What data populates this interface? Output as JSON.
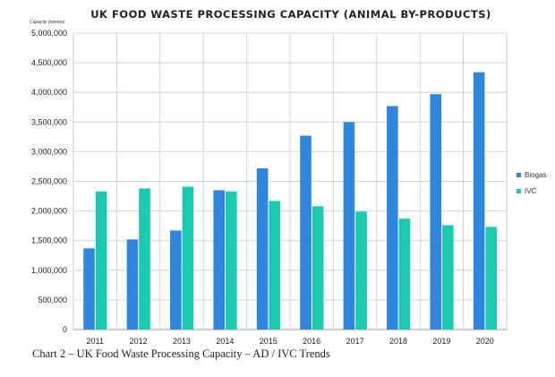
{
  "chart_data": {
    "type": "bar",
    "title": "UK FOOD WASTE PROCESSING CAPACITY (ANIMAL BY-PRODUCTS)",
    "ylabel": "Capacity (tonnes)",
    "xlabel": "",
    "categories": [
      "2011",
      "2012",
      "2013",
      "2014",
      "2015",
      "2016",
      "2017",
      "2018",
      "2019",
      "2020"
    ],
    "series": [
      {
        "name": "Biogas",
        "color": "#2e86de",
        "values": [
          1370000,
          1520000,
          1670000,
          2350000,
          2720000,
          3270000,
          3500000,
          3770000,
          3970000,
          4340000
        ]
      },
      {
        "name": "IVC",
        "color": "#1ac9b0",
        "values": [
          2330000,
          2380000,
          2410000,
          2330000,
          2170000,
          2080000,
          1990000,
          1870000,
          1760000,
          1730000
        ]
      }
    ],
    "ylim": [
      0,
      5000000
    ],
    "yticks": [
      "0",
      "500,000",
      "1,000,000",
      "1,500,000",
      "2,000,000",
      "2,500,000",
      "3,000,000",
      "3,500,000",
      "4,000,000",
      "4,500,000",
      "5,000,000"
    ],
    "grid": true,
    "legend": "right"
  },
  "caption": "Chart 2 – UK Food Waste Processing Capacity – AD / IVC Trends"
}
